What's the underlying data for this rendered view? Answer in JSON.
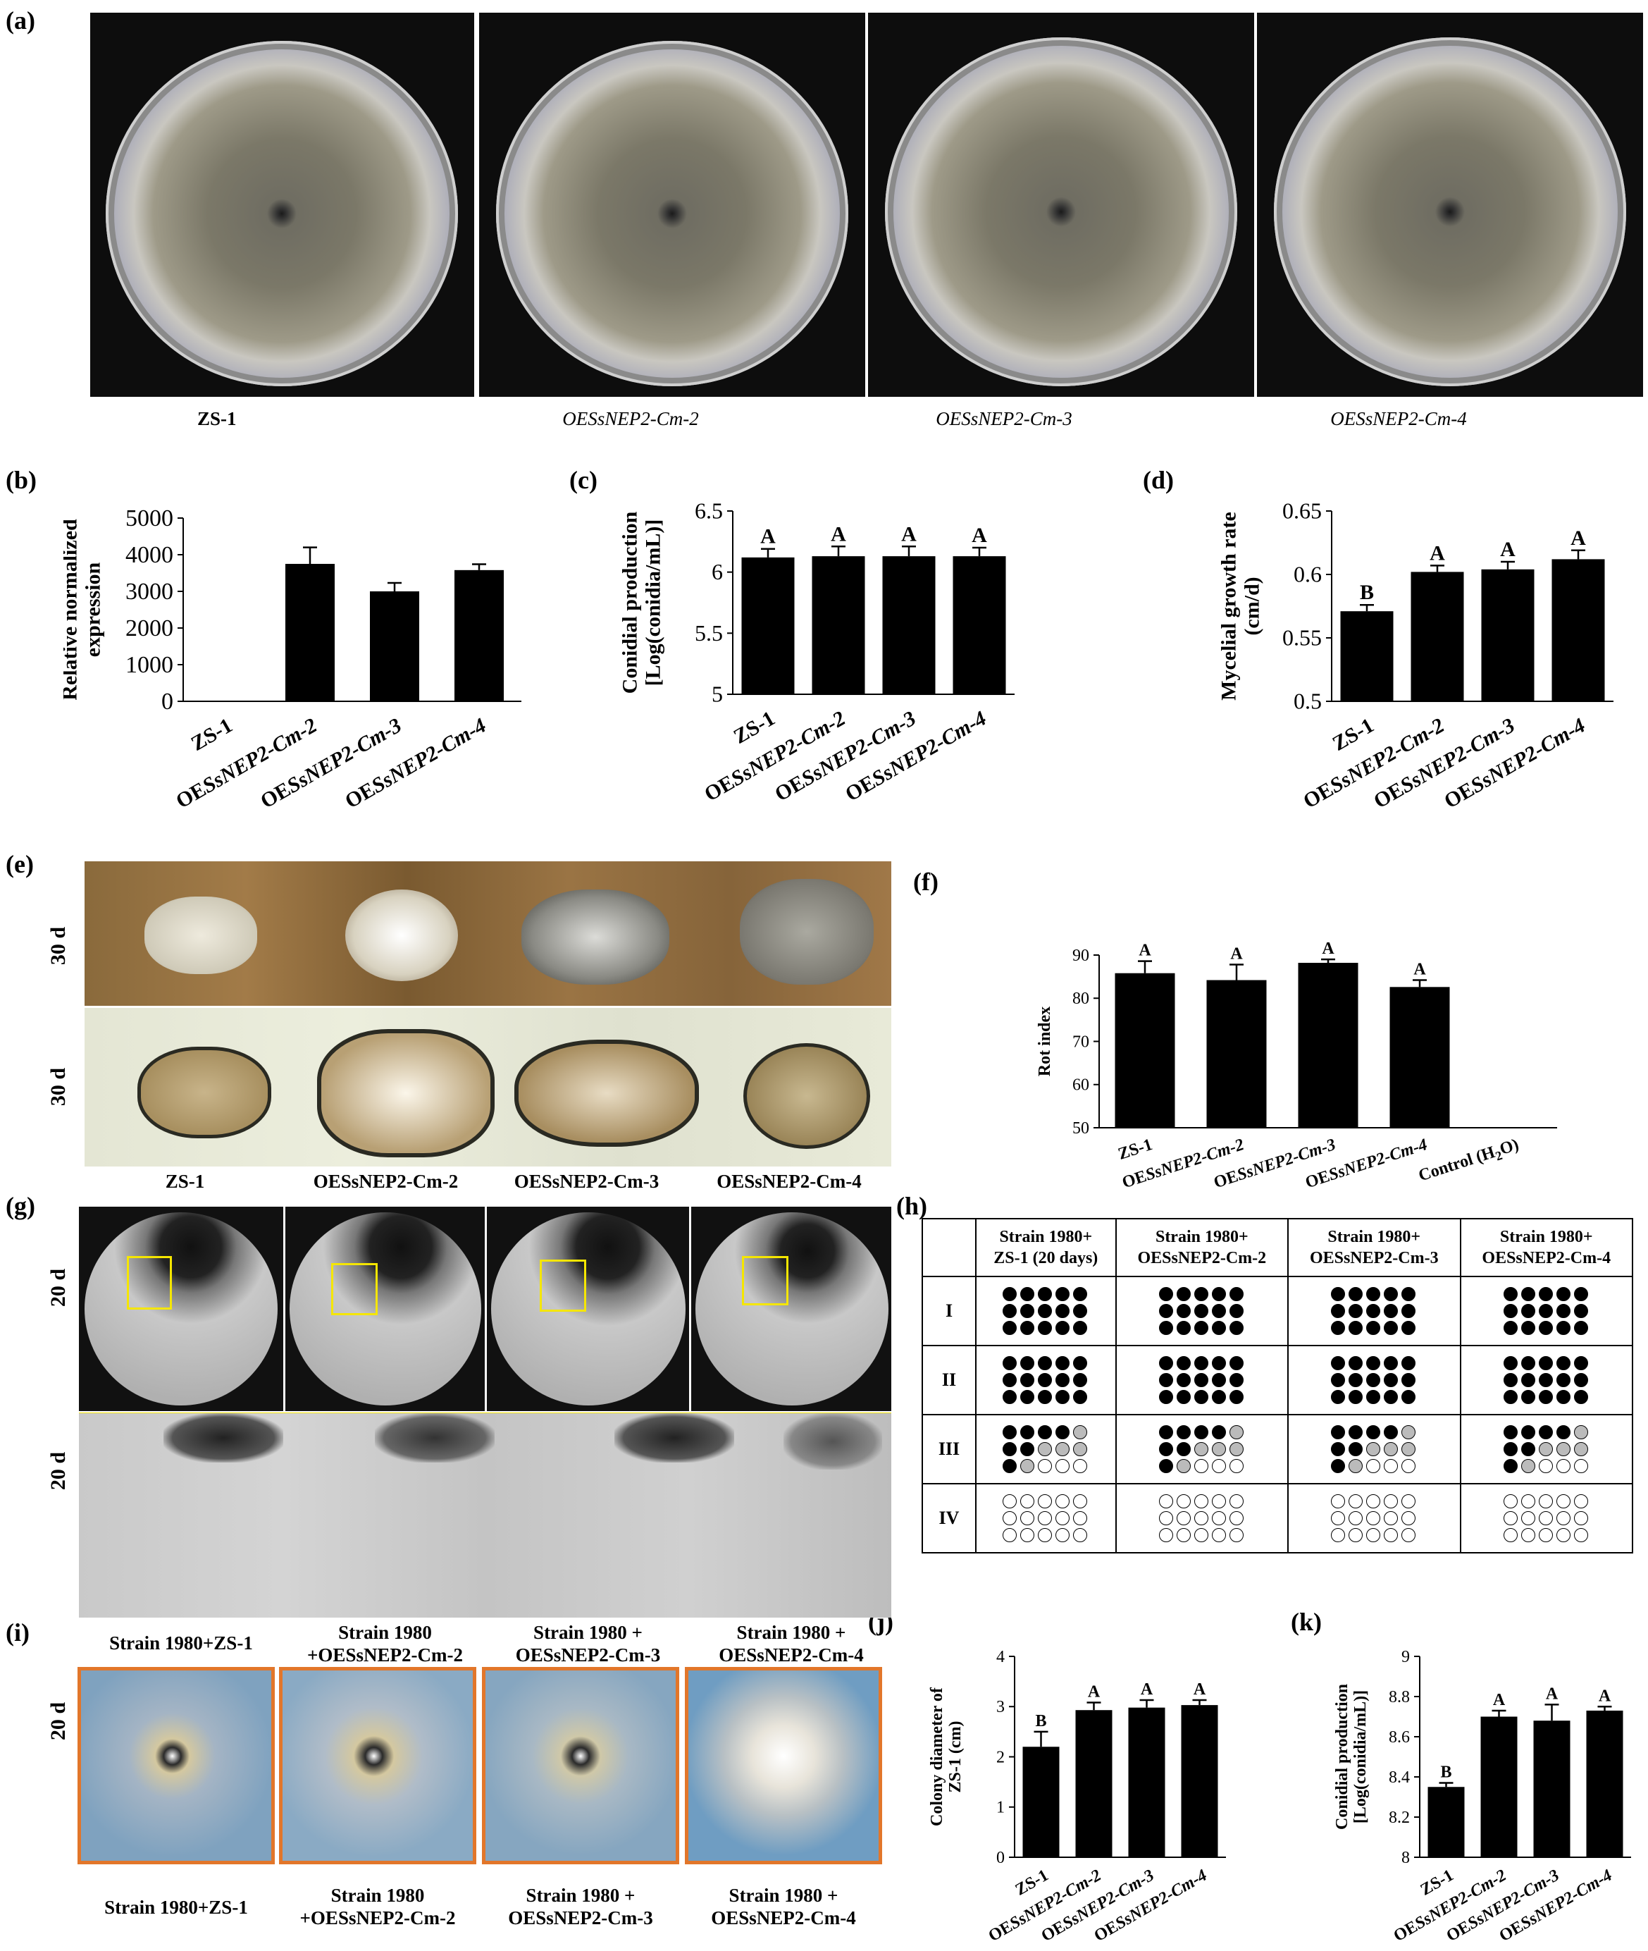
{
  "panel_labels": {
    "a": "(a)",
    "b": "(b)",
    "c": "(c)",
    "d": "(d)",
    "e": "(e)",
    "f": "(f)",
    "g": "(g)",
    "h": "(h)",
    "i": "(i)",
    "j": "(j)",
    "k": "(k)"
  },
  "panel_a": {
    "captions": [
      "ZS-1",
      "OESsNEP2-Cm-2",
      "OESsNEP2-Cm-3",
      "OESsNEP2-Cm-4"
    ]
  },
  "panel_e": {
    "row_labels": [
      "30 d",
      "30 d"
    ],
    "captions": [
      "ZS-1",
      "OESsNEP2-Cm-2",
      "OESsNEP2-Cm-3",
      "OESsNEP2-Cm-4"
    ]
  },
  "panel_g": {
    "row_labels": [
      "20 d",
      "20 d"
    ],
    "captions": [
      "Strain 1980+ZS-1",
      "Strain 1980\n+OESsNEP2-Cm-2",
      "Strain 1980 +\nOESsNEP2-Cm-3",
      "Strain 1980 +\nOESsNEP2-Cm-4"
    ]
  },
  "panel_i": {
    "row_label": "20 d",
    "captions": [
      "Strain 1980+ZS-1",
      "Strain 1980\n+OESsNEP2-Cm-2",
      "Strain 1980 +\nOESsNEP2-Cm-3",
      "Strain 1980 +\nOESsNEP2-Cm-4"
    ]
  },
  "panel_h": {
    "headers": [
      "Strain 1980+\nZS-1 (20 days)",
      "Strain 1980+\nOESsNEP2-Cm-2",
      "Strain 1980+\nOESsNEP2-Cm-3",
      "Strain 1980+\nOESsNEP2-Cm-4"
    ],
    "rows": [
      "I",
      "II",
      "III",
      "IV"
    ],
    "legend_note": "f = filled, g = grey, e = empty",
    "patterns": {
      "I": [
        "fffff",
        "fffff",
        "fffff"
      ],
      "II": [
        "fffff",
        "fffff",
        "fffff"
      ],
      "III": [
        "ffffg",
        "ffggg",
        "fgeee"
      ],
      "IV": [
        "eeeee",
        "eeeee",
        "eeeee"
      ]
    }
  },
  "chart_data": [
    {
      "id": "b",
      "type": "bar",
      "categories": [
        "ZS-1",
        "OESsNEP2-Cm-2",
        "OESsNEP2-Cm-3",
        "OESsNEP2-Cm-4"
      ],
      "values": [
        0,
        3750,
        3000,
        3580
      ],
      "errors": [
        0,
        450,
        230,
        160
      ],
      "letters": [
        "",
        "",
        "",
        ""
      ],
      "ylabel": "Relative normalized\nexpression",
      "ylim": [
        0,
        5000
      ],
      "yticks": [
        0,
        1000,
        2000,
        3000,
        4000,
        5000
      ],
      "ytick_labels": [
        "0",
        "1000",
        "2000",
        "3000",
        "4000",
        "5000"
      ]
    },
    {
      "id": "c",
      "type": "bar",
      "categories": [
        "ZS-1",
        "OESsNEP2-Cm-2",
        "OESsNEP2-Cm-3",
        "OESsNEP2-Cm-4"
      ],
      "values": [
        6.12,
        6.13,
        6.13,
        6.13
      ],
      "errors": [
        0.07,
        0.08,
        0.08,
        0.07
      ],
      "letters": [
        "A",
        "A",
        "A",
        "A"
      ],
      "ylabel": "Conidial production\n[Log(conidia/mL)]",
      "ylim": [
        5,
        6.5
      ],
      "yticks": [
        5,
        5.5,
        6,
        6.5
      ],
      "ytick_labels": [
        "5",
        "5.5",
        "6",
        "6.5"
      ]
    },
    {
      "id": "d",
      "type": "bar",
      "categories": [
        "ZS-1",
        "OESsNEP2-Cm-2",
        "OESsNEP2-Cm-3",
        "OESsNEP2-Cm-4"
      ],
      "values": [
        0.571,
        0.602,
        0.604,
        0.612
      ],
      "errors": [
        0.005,
        0.005,
        0.006,
        0.007
      ],
      "letters": [
        "B",
        "A",
        "A",
        "A"
      ],
      "ylabel": "Mycelial growth rate\n(cm/d)",
      "ylim": [
        0.5,
        0.65
      ],
      "yticks": [
        0.5,
        0.55,
        0.6,
        0.65
      ],
      "ytick_labels": [
        "0.5",
        "0.55",
        "0.6",
        "0.65"
      ]
    },
    {
      "id": "f",
      "type": "bar",
      "categories": [
        "ZS-1",
        "OESsNEP2-Cm-2",
        "OESsNEP2-Cm-3",
        "OESsNEP2-Cm-4",
        "Control (H2O)"
      ],
      "values": [
        85.8,
        84.2,
        88.2,
        82.6,
        null
      ],
      "errors": [
        2.8,
        3.6,
        0.8,
        1.6,
        0
      ],
      "letters": [
        "A",
        "A",
        "A",
        "A",
        ""
      ],
      "ylabel": "Rot index",
      "ylim": [
        50,
        90
      ],
      "yticks": [
        50,
        60,
        70,
        80,
        90
      ],
      "ytick_labels": [
        "50",
        "60",
        "70",
        "80",
        "90"
      ]
    },
    {
      "id": "j",
      "type": "bar",
      "categories": [
        "ZS-1",
        "OESsNEP2-Cm-2",
        "OESsNEP2-Cm-3",
        "OESsNEP2-Cm-4"
      ],
      "values": [
        2.2,
        2.93,
        2.98,
        3.03
      ],
      "errors": [
        0.3,
        0.15,
        0.15,
        0.1
      ],
      "letters": [
        "B",
        "A",
        "A",
        "A"
      ],
      "ylabel": "Colony diameter of\nZS-1 (cm)",
      "ylim": [
        0,
        4
      ],
      "yticks": [
        0,
        1,
        2,
        3,
        4
      ],
      "ytick_labels": [
        "0",
        "1",
        "2",
        "3",
        "4"
      ]
    },
    {
      "id": "k",
      "type": "bar",
      "categories": [
        "ZS-1",
        "OESsNEP2-Cm-2",
        "OESsNEP2-Cm-3",
        "OESsNEP2-Cm-4"
      ],
      "values": [
        8.35,
        8.7,
        8.68,
        8.73
      ],
      "errors": [
        0.02,
        0.03,
        0.08,
        0.02
      ],
      "letters": [
        "B",
        "A",
        "A",
        "A"
      ],
      "ylabel": "Conidial production\n[Log(conidia/mL)]",
      "ylim": [
        8,
        9
      ],
      "yticks": [
        8,
        8.2,
        8.4,
        8.6,
        8.8,
        9
      ],
      "ytick_labels": [
        "8",
        "8.2",
        "8.4",
        "8.6",
        "8.8",
        "9"
      ]
    }
  ]
}
